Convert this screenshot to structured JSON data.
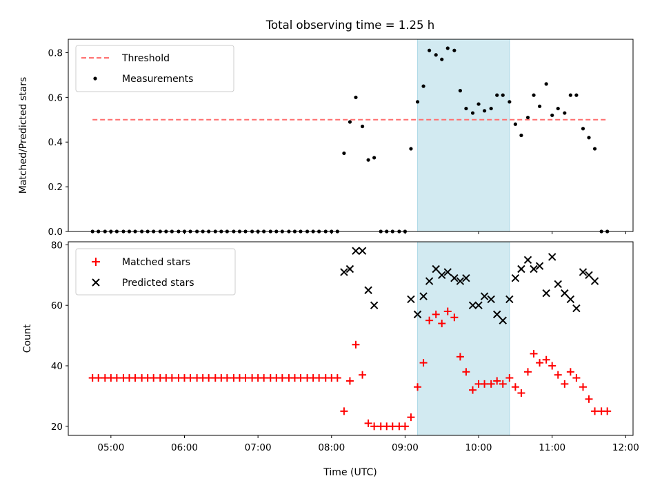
{
  "chart_data": {
    "title": "Total observing time = 1.25 h",
    "xlabel": "Time (UTC)",
    "x_units": "hours UTC",
    "xlim": [
      4.42,
      12.1
    ],
    "x_ticks": [
      {
        "v": 5,
        "label": "05:00"
      },
      {
        "v": 6,
        "label": "06:00"
      },
      {
        "v": 7,
        "label": "07:00"
      },
      {
        "v": 8,
        "label": "08:00"
      },
      {
        "v": 9,
        "label": "09:00"
      },
      {
        "v": 10,
        "label": "10:00"
      },
      {
        "v": 11,
        "label": "11:00"
      },
      {
        "v": 12,
        "label": "12:00"
      }
    ],
    "shaded_span": [
      9.17,
      10.42
    ],
    "colors": {
      "span": "#add8e6",
      "threshold": "#ff6f6f",
      "measurements": "#000000",
      "matched": "#ff0000",
      "predicted": "#000000"
    },
    "x": [
      4.75,
      4.83,
      4.92,
      5.0,
      5.08,
      5.17,
      5.25,
      5.33,
      5.42,
      5.5,
      5.58,
      5.67,
      5.75,
      5.83,
      5.92,
      6.0,
      6.08,
      6.17,
      6.25,
      6.33,
      6.42,
      6.5,
      6.58,
      6.67,
      6.75,
      6.83,
      6.92,
      7.0,
      7.08,
      7.17,
      7.25,
      7.33,
      7.42,
      7.5,
      7.58,
      7.67,
      7.75,
      7.83,
      7.92,
      8.0,
      8.08,
      8.17,
      8.25,
      8.33,
      8.42,
      8.5,
      8.58,
      8.67,
      8.75,
      8.83,
      8.92,
      9.0,
      9.08,
      9.17,
      9.25,
      9.33,
      9.42,
      9.5,
      9.58,
      9.67,
      9.75,
      9.83,
      9.92,
      10.0,
      10.08,
      10.17,
      10.25,
      10.33,
      10.42,
      10.5,
      10.58,
      10.67,
      10.75,
      10.83,
      10.92,
      11.0,
      11.08,
      11.17,
      11.25,
      11.33,
      11.42,
      11.5,
      11.58,
      11.67,
      11.75
    ],
    "panels": [
      {
        "type": "scatter",
        "ylabel": "Matched/Predicted stars",
        "ylim": [
          0,
          0.86
        ],
        "y_ticks": [
          {
            "v": 0.0,
            "label": "0.0"
          },
          {
            "v": 0.2,
            "label": "0.2"
          },
          {
            "v": 0.4,
            "label": "0.4"
          },
          {
            "v": 0.6,
            "label": "0.6"
          },
          {
            "v": 0.8,
            "label": "0.8"
          }
        ],
        "threshold": {
          "name": "Threshold",
          "value": 0.5,
          "x_range": [
            4.75,
            11.75
          ]
        },
        "legend_position": "upper-left",
        "series": [
          {
            "name": "Measurements",
            "marker": "dot",
            "values": [
              0,
              0,
              0,
              0,
              0,
              0,
              0,
              0,
              0,
              0,
              0,
              0,
              0,
              0,
              0,
              0,
              0,
              0,
              0,
              0,
              0,
              0,
              0,
              0,
              0,
              0,
              0,
              0,
              0,
              0,
              0,
              0,
              0,
              0,
              0,
              0,
              0,
              0,
              0,
              0,
              0,
              0.35,
              0.49,
              0.6,
              0.47,
              0.32,
              0.33,
              0,
              0,
              0,
              0,
              0,
              0.37,
              0.58,
              0.65,
              0.81,
              0.79,
              0.77,
              0.82,
              0.81,
              0.63,
              0.55,
              0.53,
              0.57,
              0.54,
              0.55,
              0.61,
              0.61,
              0.58,
              0.48,
              0.43,
              0.51,
              0.61,
              0.56,
              0.66,
              0.52,
              0.55,
              0.53,
              0.61,
              0.61,
              0.46,
              0.42,
              0.37,
              0,
              0
            ]
          }
        ]
      },
      {
        "type": "scatter",
        "ylabel": "Count",
        "ylim": [
          17,
          81
        ],
        "y_ticks": [
          {
            "v": 20,
            "label": "20"
          },
          {
            "v": 40,
            "label": "40"
          },
          {
            "v": 60,
            "label": "60"
          },
          {
            "v": 80,
            "label": "80"
          }
        ],
        "legend_position": "upper-left",
        "series": [
          {
            "name": "Matched stars",
            "marker": "plus",
            "values": [
              36,
              36,
              36,
              36,
              36,
              36,
              36,
              36,
              36,
              36,
              36,
              36,
              36,
              36,
              36,
              36,
              36,
              36,
              36,
              36,
              36,
              36,
              36,
              36,
              36,
              36,
              36,
              36,
              36,
              36,
              36,
              36,
              36,
              36,
              36,
              36,
              36,
              36,
              36,
              36,
              36,
              25,
              35,
              47,
              37,
              21,
              20,
              20,
              20,
              20,
              20,
              20,
              23,
              33,
              41,
              55,
              57,
              54,
              58,
              56,
              43,
              38,
              32,
              34,
              34,
              34,
              35,
              34,
              36,
              33,
              31,
              38,
              44,
              41,
              42,
              40,
              37,
              34,
              38,
              36,
              33,
              29,
              25,
              25,
              25
            ]
          },
          {
            "name": "Predicted stars",
            "marker": "x",
            "values": [
              null,
              null,
              null,
              null,
              null,
              null,
              null,
              null,
              null,
              null,
              null,
              null,
              null,
              null,
              null,
              null,
              null,
              null,
              null,
              null,
              null,
              null,
              null,
              null,
              null,
              null,
              null,
              null,
              null,
              null,
              null,
              null,
              null,
              null,
              null,
              null,
              null,
              null,
              null,
              null,
              null,
              71,
              72,
              78,
              78,
              65,
              60,
              null,
              null,
              null,
              null,
              null,
              62,
              57,
              63,
              68,
              72,
              70,
              71,
              69,
              68,
              69,
              60,
              60,
              63,
              62,
              57,
              55,
              62,
              69,
              72,
              75,
              72,
              73,
              64,
              76,
              67,
              64,
              62,
              59,
              71,
              70,
              68,
              null,
              null
            ]
          }
        ]
      }
    ]
  }
}
